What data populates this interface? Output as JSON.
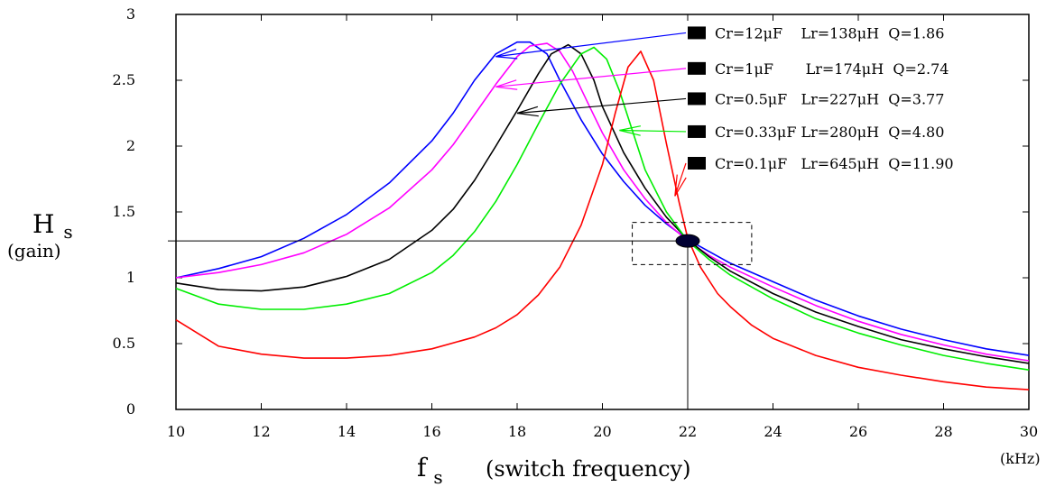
{
  "chart_data": {
    "type": "line",
    "title": "",
    "xlabel": {
      "symbol": "f",
      "subscript": "s",
      "description": "(switch frequency)",
      "unit": "(kHz)"
    },
    "ylabel": {
      "symbol": "H",
      "subscript": "s",
      "description": "(gain)"
    },
    "xlim": [
      10,
      30
    ],
    "ylim": [
      0,
      3
    ],
    "x_ticks": [
      10,
      12,
      14,
      16,
      18,
      20,
      22,
      24,
      26,
      28,
      30
    ],
    "y_ticks": [
      0,
      0.5,
      1,
      1.5,
      2,
      2.5,
      3
    ],
    "y_tick_labels": [
      "0",
      "0.5",
      "1",
      "1.5",
      "2",
      "2.5",
      "3"
    ],
    "grid": false,
    "legend_position": "top-right",
    "series": [
      {
        "label": "Cr=12μF    Lr=138μH  Q=1.86",
        "color": "#0000ff",
        "x": [
          10,
          11,
          12,
          13,
          14,
          15,
          16,
          16.5,
          17,
          17.5,
          18,
          18.3,
          18.7,
          19,
          19.5,
          20,
          20.5,
          21,
          21.5,
          22,
          22.5,
          23,
          24,
          25,
          26,
          27,
          28,
          29,
          30
        ],
        "y": [
          1.0,
          1.07,
          1.16,
          1.3,
          1.48,
          1.72,
          2.04,
          2.25,
          2.5,
          2.7,
          2.79,
          2.79,
          2.7,
          2.5,
          2.2,
          1.94,
          1.73,
          1.55,
          1.41,
          1.29,
          1.2,
          1.11,
          0.97,
          0.83,
          0.71,
          0.61,
          0.53,
          0.46,
          0.41
        ]
      },
      {
        "label": "Cr=1μF       Lr=174μH  Q=2.74",
        "color": "#ff00ff",
        "x": [
          10,
          11,
          12,
          13,
          14,
          15,
          16,
          16.5,
          17,
          17.5,
          18,
          18.3,
          18.7,
          19,
          19.3,
          19.7,
          20,
          20.5,
          21,
          21.5,
          22,
          22.5,
          23,
          24,
          25,
          26,
          27,
          28,
          29,
          30
        ],
        "y": [
          1.0,
          1.04,
          1.1,
          1.19,
          1.33,
          1.53,
          1.82,
          2.01,
          2.24,
          2.47,
          2.68,
          2.76,
          2.78,
          2.72,
          2.57,
          2.3,
          2.1,
          1.82,
          1.6,
          1.42,
          1.28,
          1.17,
          1.08,
          0.93,
          0.79,
          0.67,
          0.57,
          0.49,
          0.42,
          0.37
        ]
      },
      {
        "label": "Cr=0.5μF   Lr=227μH  Q=3.77",
        "color": "#000000",
        "x": [
          10,
          11,
          12,
          13,
          14,
          15,
          16,
          16.5,
          17,
          17.5,
          18,
          18.5,
          18.8,
          19.2,
          19.5,
          19.8,
          20,
          20.5,
          21,
          21.5,
          22,
          22.5,
          23,
          24,
          25,
          26,
          27,
          28,
          29,
          30
        ],
        "y": [
          0.96,
          0.91,
          0.9,
          0.93,
          1.01,
          1.14,
          1.36,
          1.52,
          1.74,
          2.0,
          2.27,
          2.55,
          2.7,
          2.77,
          2.7,
          2.5,
          2.3,
          1.95,
          1.68,
          1.46,
          1.29,
          1.16,
          1.05,
          0.88,
          0.74,
          0.63,
          0.53,
          0.46,
          0.4,
          0.35
        ]
      },
      {
        "label": "Cr=0.33μF Lr=280μH  Q=4.80",
        "color": "#00ee00",
        "x": [
          10,
          11,
          12,
          13,
          14,
          15,
          16,
          16.5,
          17,
          17.5,
          18,
          18.5,
          19,
          19.5,
          19.8,
          20.1,
          20.4,
          20.7,
          21,
          21.5,
          22,
          22.5,
          23,
          24,
          25,
          26,
          27,
          28,
          29,
          30
        ],
        "y": [
          0.92,
          0.8,
          0.76,
          0.76,
          0.8,
          0.88,
          1.04,
          1.17,
          1.35,
          1.58,
          1.86,
          2.17,
          2.47,
          2.7,
          2.75,
          2.66,
          2.42,
          2.12,
          1.82,
          1.5,
          1.28,
          1.14,
          1.02,
          0.84,
          0.69,
          0.58,
          0.49,
          0.41,
          0.35,
          0.3
        ]
      },
      {
        "label": "Cr=0.1μF   Lr=645μH  Q=11.90",
        "color": "#ff0000",
        "x": [
          10,
          11,
          12,
          13,
          14,
          15,
          16,
          17,
          17.5,
          18,
          18.5,
          19,
          19.5,
          20,
          20.3,
          20.6,
          20.9,
          21.2,
          21.5,
          21.8,
          22,
          22.3,
          22.7,
          23,
          23.5,
          24,
          25,
          26,
          27,
          28,
          29,
          30
        ],
        "y": [
          0.68,
          0.48,
          0.42,
          0.39,
          0.39,
          0.41,
          0.46,
          0.55,
          0.62,
          0.72,
          0.87,
          1.08,
          1.4,
          1.86,
          2.25,
          2.6,
          2.72,
          2.5,
          2.02,
          1.57,
          1.3,
          1.08,
          0.88,
          0.78,
          0.64,
          0.54,
          0.41,
          0.32,
          0.26,
          0.21,
          0.17,
          0.15
        ]
      }
    ],
    "annotations": {
      "operating_point": {
        "x": 22,
        "y": 1.28
      },
      "dashed_box": {
        "x0": 20.7,
        "x1": 23.5,
        "y0": 1.1,
        "y1": 1.42
      },
      "callout_arrows": [
        {
          "series": 0,
          "from": [
            30,
            2.86
          ],
          "to": [
            17.5,
            2.68
          ]
        },
        {
          "series": 1,
          "from": [
            30,
            2.59
          ],
          "to": [
            17.5,
            2.45
          ]
        },
        {
          "series": 2,
          "from": [
            30,
            2.36
          ],
          "to": [
            18.0,
            2.25
          ]
        },
        {
          "series": 3,
          "from": [
            30,
            2.11
          ],
          "to": [
            20.4,
            2.12
          ]
        },
        {
          "series": 4,
          "from": [
            30,
            1.87
          ],
          "to": [
            21.7,
            1.62
          ]
        }
      ]
    }
  }
}
